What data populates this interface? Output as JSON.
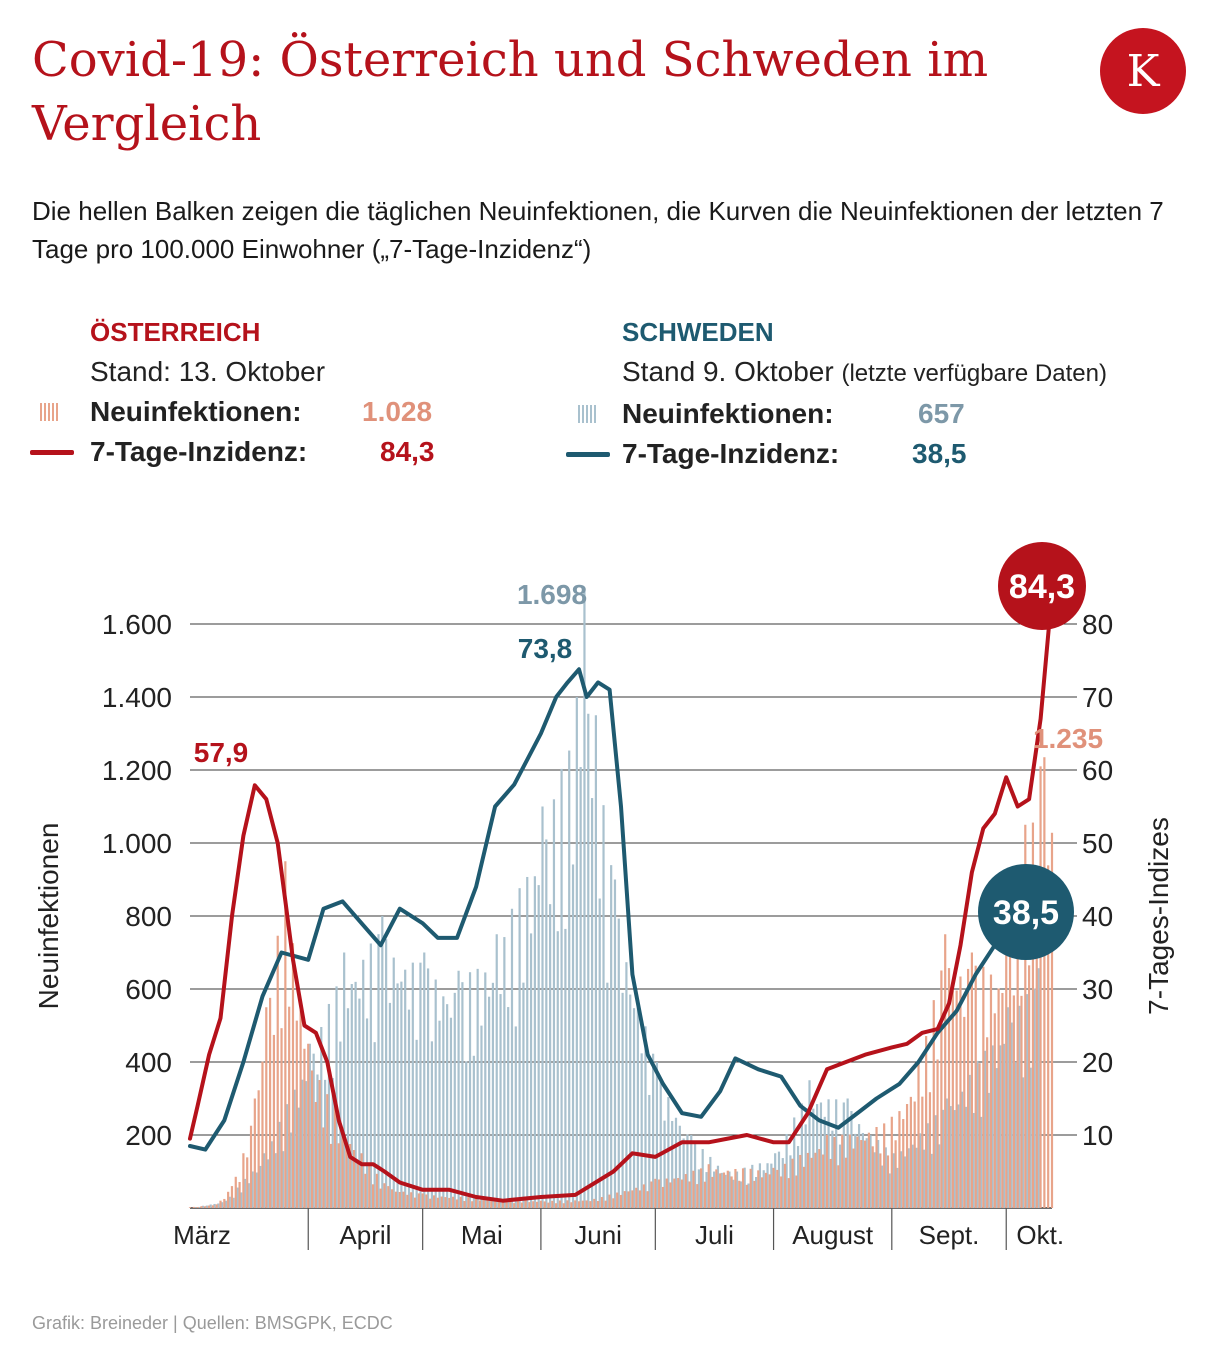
{
  "header": {
    "title": "Covid-19: Österreich und Schweden im Vergleich",
    "subtitle": "Die hellen Balken zeigen die täglichen Neuinfektionen, die Kurven die Neuinfektionen der letzten 7 Tage pro 100.000 Einwohner („7-Tage-Inzidenz“)",
    "logo_letter": "K"
  },
  "colors": {
    "brand": "#b5121b",
    "at_line": "#b5121b",
    "at_bars": "#e8a48a",
    "at_value_light": "#e0917a",
    "se_line": "#1e5a70",
    "se_bars": "#a9c1ce",
    "se_value_light": "#7d98a8"
  },
  "legend": {
    "at": {
      "name": "ÖSTERREICH",
      "stand": "Stand: 13. Oktober",
      "stand_note": "",
      "neu_label": "Neuinfektionen:",
      "neu_value": "1.028",
      "inz_label": "7-Tage-Inzidenz:",
      "inz_value": "84,3"
    },
    "se": {
      "name": "SCHWEDEN",
      "stand": "Stand 9. Oktober",
      "stand_note": "(letzte verfügbare Daten)",
      "neu_label": "Neuinfektionen:",
      "neu_value": "657",
      "inz_label": "7-Tage-Inzidenz:",
      "inz_value": "38,5"
    }
  },
  "chart_data": {
    "type": "bar+line",
    "ylabel": "Neuinfektionen",
    "y2label": "7-Tages-Indizes",
    "ylim": [
      0,
      1600
    ],
    "y2lim": [
      0,
      80
    ],
    "yticks": [
      200,
      400,
      600,
      800,
      1000,
      1200,
      1400,
      1600
    ],
    "ytick_labels": [
      "200",
      "400",
      "600",
      "800",
      "1.000",
      "1.200",
      "1.400",
      "1.600"
    ],
    "y2ticks": [
      10,
      20,
      30,
      40,
      50,
      60,
      70,
      80
    ],
    "y2tick_labels": [
      "10",
      "20",
      "30",
      "40",
      "50",
      "60",
      "70",
      "80"
    ],
    "x_months": [
      "März",
      "April",
      "Mai",
      "Juni",
      "Juli",
      "August",
      "Sept.",
      "Okt."
    ],
    "x_start": "01.03.",
    "x_end": "13.10.",
    "grid": true,
    "bars_at": {
      "name": "Neuinfektionen Österreich",
      "x": [
        "01.03.",
        "08.03.",
        "12.03.",
        "15.03.",
        "18.03.",
        "21.03.",
        "26.03.",
        "01.04.",
        "08.04.",
        "15.04.",
        "22.04.",
        "01.05.",
        "15.05.",
        "01.06.",
        "15.06.",
        "01.07.",
        "15.07.",
        "01.08.",
        "15.08.",
        "01.09.",
        "08.09.",
        "15.09.",
        "22.09.",
        "01.10.",
        "06.10.",
        "10.10.",
        "11.10.",
        "13.10."
      ],
      "values": [
        2,
        10,
        60,
        150,
        300,
        550,
        950,
        450,
        280,
        150,
        60,
        40,
        30,
        20,
        25,
        80,
        120,
        110,
        200,
        250,
        400,
        750,
        700,
        700,
        1050,
        1210,
        1235,
        1028
      ]
    },
    "bars_se": {
      "name": "Neuinfektionen Schweden",
      "x": [
        "01.03.",
        "10.03.",
        "20.03.",
        "01.04.",
        "10.04.",
        "20.04.",
        "01.05.",
        "10.05.",
        "20.05.",
        "01.06.",
        "10.06.",
        "12.06.",
        "15.06.",
        "20.06.",
        "01.07.",
        "10.07.",
        "20.07.",
        "01.08.",
        "10.08.",
        "20.08.",
        "01.09.",
        "15.09.",
        "01.10.",
        "09.10."
      ],
      "values": [
        0,
        20,
        150,
        450,
        700,
        800,
        700,
        650,
        750,
        1100,
        1400,
        1698,
        1350,
        900,
        400,
        200,
        100,
        150,
        350,
        300,
        150,
        300,
        550,
        657
      ]
    },
    "line_at": {
      "name": "7-Tage-Inzidenz Österreich",
      "x": [
        "01.03.",
        "03.03.",
        "06.03.",
        "09.03.",
        "12.03.",
        "15.03.",
        "18.03.",
        "21.03.",
        "24.03.",
        "26.03.",
        "28.03.",
        "31.03.",
        "03.04.",
        "06.04.",
        "09.04.",
        "12.04.",
        "15.04.",
        "18.04.",
        "21.04.",
        "25.04.",
        "01.05.",
        "08.05.",
        "15.05.",
        "22.05.",
        "01.06.",
        "10.06.",
        "20.06.",
        "25.06.",
        "01.07.",
        "08.07.",
        "15.07.",
        "20.07.",
        "25.07.",
        "01.08.",
        "05.08.",
        "10.08.",
        "15.08.",
        "20.08.",
        "25.08.",
        "01.09.",
        "05.09.",
        "09.09.",
        "13.09.",
        "16.09.",
        "19.09.",
        "22.09.",
        "25.09.",
        "28.09.",
        "01.10.",
        "04.10.",
        "07.10.",
        "10.10.",
        "13.10."
      ],
      "values": [
        9.5,
        14,
        21,
        26,
        40,
        51,
        57.9,
        56,
        50,
        42,
        34,
        25,
        24,
        20,
        12,
        7,
        6,
        6,
        5,
        3.5,
        2.5,
        2.5,
        1.5,
        1,
        1.5,
        1.8,
        5,
        7.5,
        7,
        9,
        9,
        9.5,
        10,
        9,
        9,
        13,
        19,
        20,
        21,
        22,
        22.5,
        24,
        24.5,
        28,
        36,
        46,
        52,
        54,
        59,
        55,
        56,
        67,
        84.3
      ]
    },
    "line_se": {
      "name": "7-Tage-Inzidenz Schweden",
      "x": [
        "01.03.",
        "05.03.",
        "10.03.",
        "15.03.",
        "20.03.",
        "25.03.",
        "01.04.",
        "05.04.",
        "10.04.",
        "15.04.",
        "20.04.",
        "25.04.",
        "01.05.",
        "05.05.",
        "10.05.",
        "15.05.",
        "20.05.",
        "25.05.",
        "01.06.",
        "05.06.",
        "08.06.",
        "11.06.",
        "13.06.",
        "16.06.",
        "19.06.",
        "22.06.",
        "25.06.",
        "29.06.",
        "03.07.",
        "08.07.",
        "13.07.",
        "18.07.",
        "22.07.",
        "28.07.",
        "03.08.",
        "08.08.",
        "13.08.",
        "18.08.",
        "23.08.",
        "28.08.",
        "03.09.",
        "08.09.",
        "13.09.",
        "18.09.",
        "23.09.",
        "28.09.",
        "02.10.",
        "06.10.",
        "09.10."
      ],
      "values": [
        8.5,
        8,
        12,
        20,
        29,
        35,
        34,
        41,
        42,
        39,
        36,
        41,
        39,
        37,
        37,
        44,
        55,
        58,
        65,
        70,
        72,
        73.8,
        70,
        72,
        71,
        55,
        32,
        21,
        17,
        13,
        12.5,
        16,
        20.5,
        19,
        18,
        14,
        12,
        11,
        13,
        15,
        17,
        20,
        24,
        27,
        32,
        36,
        37,
        37.5,
        38.5
      ]
    },
    "annotations": [
      {
        "text": "57,9",
        "series": "line_at"
      },
      {
        "text": "73,8",
        "series": "line_se"
      },
      {
        "text": "1.698",
        "series": "bars_se"
      },
      {
        "text": "1.235",
        "series": "bars_at"
      },
      {
        "text": "84,3",
        "series": "line_at",
        "style": "bubble"
      },
      {
        "text": "38,5",
        "series": "line_se",
        "style": "bubble"
      }
    ]
  },
  "footer": "Grafik: Breineder | Quellen: BMSGPK, ECDC"
}
